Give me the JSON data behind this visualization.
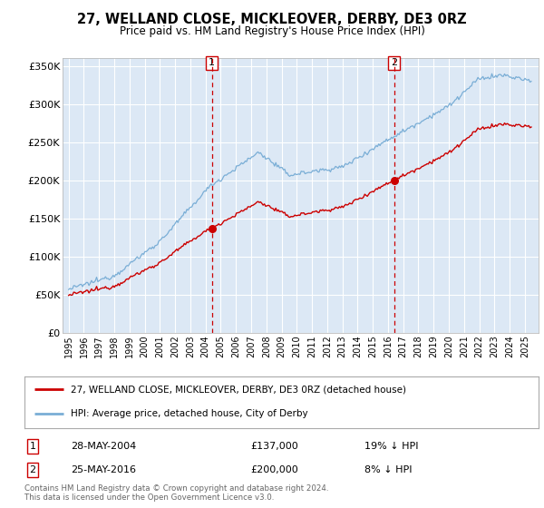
{
  "title": "27, WELLAND CLOSE, MICKLEOVER, DERBY, DE3 0RZ",
  "subtitle": "Price paid vs. HM Land Registry's House Price Index (HPI)",
  "bg_color": "#dce8f5",
  "grid_color": "#ffffff",
  "ylim": [
    0,
    360000
  ],
  "yticks": [
    0,
    50000,
    100000,
    150000,
    200000,
    250000,
    300000,
    350000
  ],
  "ytick_labels": [
    "£0",
    "£50K",
    "£100K",
    "£150K",
    "£200K",
    "£250K",
    "£300K",
    "£350K"
  ],
  "sale1_date_num": 2004.41,
  "sale1_price": 137000,
  "sale2_date_num": 2016.4,
  "sale2_price": 200000,
  "red_line_color": "#cc0000",
  "blue_line_color": "#7aaed6",
  "vline_color": "#cc0000",
  "legend_line1": "27, WELLAND CLOSE, MICKLEOVER, DERBY, DE3 0RZ (detached house)",
  "legend_line2": "HPI: Average price, detached house, City of Derby",
  "table_row1": [
    "1",
    "28-MAY-2004",
    "£137,000",
    "19% ↓ HPI"
  ],
  "table_row2": [
    "2",
    "25-MAY-2016",
    "£200,000",
    "8% ↓ HPI"
  ],
  "footer": "Contains HM Land Registry data © Crown copyright and database right 2024.\nThis data is licensed under the Open Government Licence v3.0."
}
